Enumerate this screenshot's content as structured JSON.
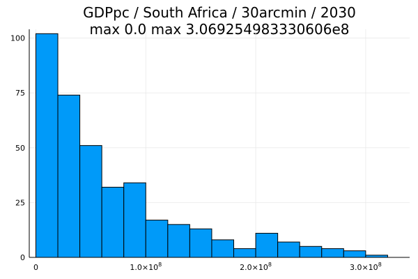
{
  "chart_data": {
    "type": "bar",
    "title": "GDPpc / South Africa / 30arcmin / 2030",
    "subtitle": "max 0.0  max 3.069254983330606e8",
    "xlabel": "",
    "ylabel": "",
    "bin_edges": [
      0,
      20000000,
      40000000,
      60000000,
      80000000,
      100000000,
      120000000,
      140000000,
      160000000,
      180000000,
      200000000,
      220000000,
      240000000,
      260000000,
      280000000,
      300000000,
      320000000
    ],
    "values": [
      102,
      74,
      51,
      32,
      34,
      17,
      15,
      13,
      8,
      4,
      11,
      7,
      5,
      4,
      3,
      1
    ],
    "xlim": [
      -6000000,
      340000000
    ],
    "ylim": [
      0,
      104
    ],
    "x_ticks": [
      {
        "value": 0,
        "base": "0",
        "exp": ""
      },
      {
        "value": 100000000,
        "base": "1.0×10",
        "exp": "8"
      },
      {
        "value": 200000000,
        "base": "2.0×10",
        "exp": "8"
      },
      {
        "value": 300000000,
        "base": "3.0×10",
        "exp": "8"
      }
    ],
    "y_ticks": [
      0,
      25,
      50,
      75,
      100
    ],
    "color": "#009af9",
    "grid": true,
    "legend": "none"
  }
}
